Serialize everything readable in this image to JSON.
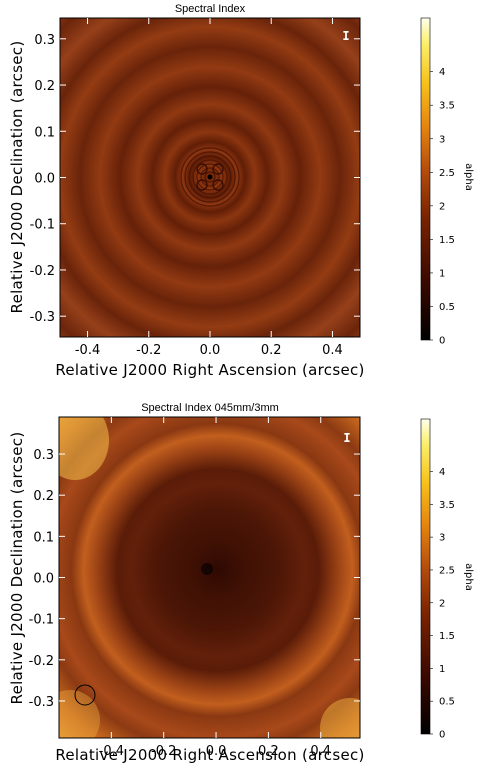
{
  "chart_data": [
    {
      "type": "heatmap",
      "title": "Spectral Index",
      "xlabel": "Relative J2000 Right Ascension (arcsec)",
      "ylabel": "Relative J2000 Declination (arcsec)",
      "xticks": [
        "-0.4",
        "-0.2",
        "0.0",
        "0.2",
        "0.4"
      ],
      "xtick_values": [
        -0.4,
        -0.2,
        0.0,
        0.2,
        0.4
      ],
      "yticks": [
        "0.3",
        "0.2",
        "0.1",
        "0.0",
        "-0.1",
        "-0.2",
        "-0.3"
      ],
      "ytick_values": [
        0.3,
        0.2,
        0.1,
        0.0,
        -0.1,
        -0.2,
        -0.3
      ],
      "xlim": [
        -0.49,
        0.49
      ],
      "ylim": [
        -0.345,
        0.345
      ],
      "stokes_label": "I",
      "colorbar": {
        "label": "alpha",
        "ticks": [
          "0",
          "0.5",
          "1",
          "1.5",
          "2",
          "2.5",
          "3",
          "3.5",
          "4"
        ],
        "tick_values": [
          0,
          0.5,
          1,
          1.5,
          2,
          2.5,
          3,
          3.5,
          4
        ],
        "range": [
          0,
          4.8
        ]
      }
    },
    {
      "type": "heatmap",
      "title": "Spectral Index 045mm/3mm",
      "xlabel": "Relative J2000 Right Ascension (arcsec)",
      "ylabel": "Relative J2000 Declination (arcsec)",
      "xticks": [
        "-0.4",
        "-0.2",
        "0.0",
        "0.2",
        "0.4"
      ],
      "xtick_values": [
        -0.4,
        -0.2,
        0.0,
        0.2,
        0.4
      ],
      "yticks": [
        "0.3",
        "0.2",
        "0.1",
        "0.0",
        "-0.1",
        "-0.2",
        "-0.3"
      ],
      "ytick_values": [
        0.3,
        0.2,
        0.1,
        0.0,
        -0.1,
        -0.2,
        -0.3
      ],
      "xlim": [
        -0.6,
        0.55
      ],
      "ylim": [
        -0.39,
        0.39
      ],
      "stokes_label": "I",
      "colorbar": {
        "label": "alpha",
        "ticks": [
          "0",
          "0.5",
          "1",
          "1.5",
          "2",
          "2.5",
          "3",
          "3.5",
          "4"
        ],
        "tick_values": [
          0,
          0.5,
          1,
          1.5,
          2,
          2.5,
          3,
          3.5,
          4
        ],
        "range": [
          0,
          4.8
        ]
      }
    }
  ]
}
